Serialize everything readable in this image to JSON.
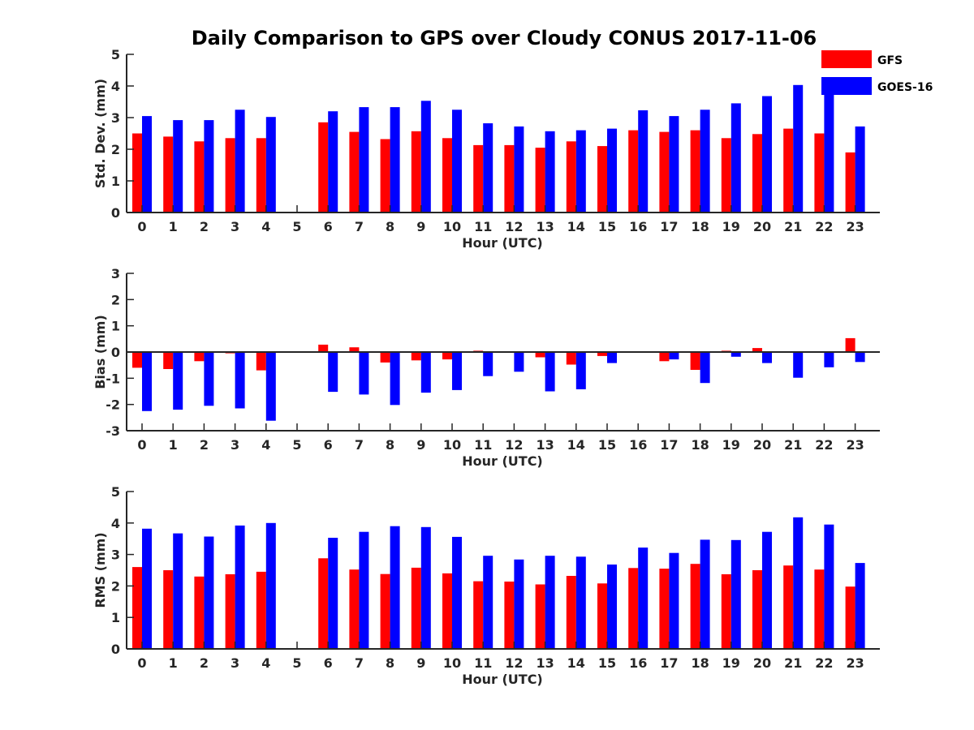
{
  "title": "Daily Comparison to GPS over Cloudy CONUS 2017-11-06",
  "colors": {
    "GFS": "#ff0000",
    "GOES-16": "#0000ff",
    "axis": "#262626"
  },
  "legend": {
    "placement": "top-right",
    "entries": [
      "GFS",
      "GOES-16"
    ]
  },
  "chart_data": [
    {
      "type": "bar",
      "xlabel": "Hour (UTC)",
      "ylabel": "Std. Dev. (mm)",
      "ylim": [
        0,
        5
      ],
      "yticks": [
        "0",
        "1",
        "2",
        "3",
        "4",
        "5"
      ],
      "categories": [
        "0",
        "1",
        "2",
        "3",
        "4",
        "5",
        "6",
        "7",
        "8",
        "9",
        "10",
        "11",
        "12",
        "13",
        "14",
        "15",
        "16",
        "17",
        "18",
        "19",
        "20",
        "21",
        "22",
        "23"
      ],
      "series": [
        {
          "name": "GFS",
          "values": [
            2.5,
            2.4,
            2.25,
            2.35,
            2.35,
            null,
            2.85,
            2.55,
            2.32,
            2.57,
            2.35,
            2.13,
            2.13,
            2.05,
            2.25,
            2.1,
            2.6,
            2.55,
            2.6,
            2.35,
            2.48,
            2.65,
            2.5,
            1.9
          ]
        },
        {
          "name": "GOES-16",
          "values": [
            3.05,
            2.92,
            2.92,
            3.25,
            3.02,
            null,
            3.2,
            3.33,
            3.33,
            3.53,
            3.25,
            2.82,
            2.72,
            2.57,
            2.6,
            2.65,
            3.23,
            3.05,
            3.25,
            3.45,
            3.68,
            4.03,
            3.88,
            2.72
          ]
        }
      ]
    },
    {
      "type": "bar",
      "xlabel": "Hour (UTC)",
      "ylabel": "Bias (mm)",
      "ylim": [
        -3,
        3
      ],
      "yticks": [
        "-3",
        "-2",
        "-1",
        "0",
        "1",
        "2",
        "3"
      ],
      "categories": [
        "0",
        "1",
        "2",
        "3",
        "4",
        "5",
        "6",
        "7",
        "8",
        "9",
        "10",
        "11",
        "12",
        "13",
        "14",
        "15",
        "16",
        "17",
        "18",
        "19",
        "20",
        "21",
        "22",
        "23"
      ],
      "series": [
        {
          "name": "GFS",
          "values": [
            -0.6,
            -0.65,
            -0.35,
            -0.05,
            -0.7,
            null,
            0.28,
            0.18,
            -0.4,
            -0.32,
            -0.28,
            0.05,
            0.02,
            -0.2,
            -0.48,
            -0.15,
            0.0,
            -0.35,
            -0.68,
            0.05,
            0.15,
            0.0,
            0.0,
            0.53
          ]
        },
        {
          "name": "GOES-16",
          "values": [
            -2.25,
            -2.2,
            -2.05,
            -2.15,
            -2.62,
            null,
            -1.52,
            -1.62,
            -2.02,
            -1.55,
            -1.45,
            -0.92,
            -0.75,
            -1.5,
            -1.42,
            -0.42,
            0.02,
            -0.28,
            -1.18,
            -0.18,
            -0.42,
            -0.98,
            -0.58,
            -0.38
          ]
        }
      ]
    },
    {
      "type": "bar",
      "xlabel": "Hour (UTC)",
      "ylabel": "RMS (mm)",
      "ylim": [
        0,
        5
      ],
      "yticks": [
        "0",
        "1",
        "2",
        "3",
        "4",
        "5"
      ],
      "categories": [
        "0",
        "1",
        "2",
        "3",
        "4",
        "5",
        "6",
        "7",
        "8",
        "9",
        "10",
        "11",
        "12",
        "13",
        "14",
        "15",
        "16",
        "17",
        "18",
        "19",
        "20",
        "21",
        "22",
        "23"
      ],
      "series": [
        {
          "name": "GFS",
          "values": [
            2.6,
            2.5,
            2.3,
            2.37,
            2.45,
            null,
            2.88,
            2.52,
            2.38,
            2.58,
            2.4,
            2.15,
            2.14,
            2.05,
            2.32,
            2.08,
            2.57,
            2.55,
            2.7,
            2.37,
            2.5,
            2.65,
            2.52,
            1.98
          ]
        },
        {
          "name": "GOES-16",
          "values": [
            3.82,
            3.67,
            3.57,
            3.92,
            4.0,
            null,
            3.53,
            3.72,
            3.9,
            3.87,
            3.56,
            2.96,
            2.84,
            2.96,
            2.93,
            2.68,
            3.22,
            3.05,
            3.47,
            3.46,
            3.72,
            4.18,
            3.95,
            2.73
          ]
        }
      ]
    }
  ]
}
